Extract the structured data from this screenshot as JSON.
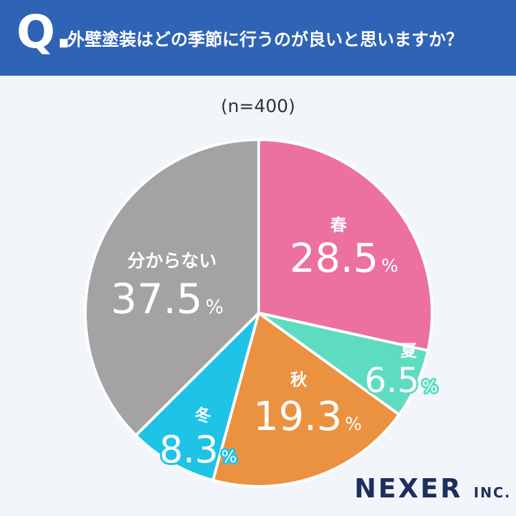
{
  "header": {
    "q_mark": "Q.",
    "question": "外壁塗装はどの季節に行うのが良いと思いますか？"
  },
  "sample": "(n=400)",
  "logo": {
    "main": "NEXER",
    "suffix": "INC."
  },
  "chart_data": {
    "type": "pie",
    "title": "",
    "slices": [
      {
        "label": "春",
        "value": 28.5,
        "display": "28.5",
        "unit": "%",
        "color": "#ec719e"
      },
      {
        "label": "夏",
        "value": 6.5,
        "display": "6.5",
        "unit": "%",
        "color": "#5ddcc2"
      },
      {
        "label": "秋",
        "value": 19.3,
        "display": "19.3",
        "unit": "%",
        "color": "#ea9240"
      },
      {
        "label": "冬",
        "value": 8.3,
        "display": "8.3",
        "unit": "%",
        "color": "#1fc3e6"
      },
      {
        "label": "分からない",
        "value": 37.5,
        "display": "37.5",
        "unit": "%",
        "color": "#a3a3a3"
      }
    ]
  }
}
